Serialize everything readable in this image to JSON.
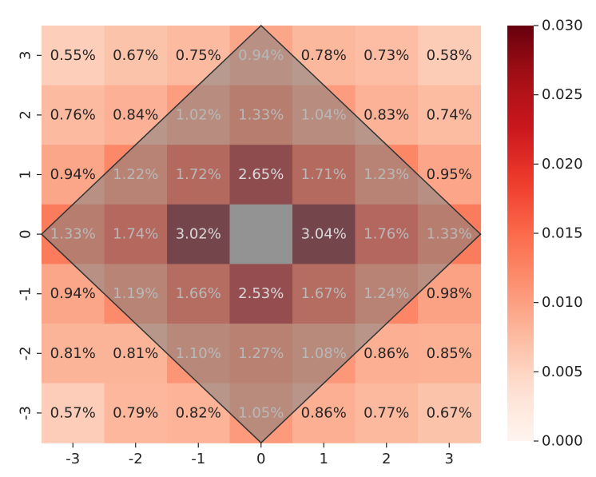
{
  "chart_data": {
    "type": "heatmap",
    "x_labels": [
      "-3",
      "-2",
      "-1",
      "0",
      "1",
      "2",
      "3"
    ],
    "y_labels": [
      "3",
      "2",
      "1",
      "0",
      "-1",
      "-2",
      "-3"
    ],
    "values": [
      [
        0.0055,
        0.0067,
        0.0075,
        0.0094,
        0.0078,
        0.0073,
        0.0058
      ],
      [
        0.0076,
        0.0084,
        0.0102,
        0.0133,
        0.0104,
        0.0083,
        0.0074
      ],
      [
        0.0094,
        0.0122,
        0.0172,
        0.0265,
        0.0171,
        0.0123,
        0.0095
      ],
      [
        0.0133,
        0.0174,
        0.0302,
        null,
        0.0304,
        0.0176,
        0.0133
      ],
      [
        0.0094,
        0.0119,
        0.0166,
        0.0253,
        0.0167,
        0.0124,
        0.0098
      ],
      [
        0.0081,
        0.0081,
        0.011,
        0.0127,
        0.0108,
        0.0086,
        0.0085
      ],
      [
        0.0057,
        0.0079,
        0.0082,
        0.0105,
        0.0086,
        0.0077,
        0.0067
      ]
    ],
    "cell_labels": [
      [
        "0.55%",
        "0.67%",
        "0.75%",
        "0.94%",
        "0.78%",
        "0.73%",
        "0.58%"
      ],
      [
        "0.76%",
        "0.84%",
        "1.02%",
        "1.33%",
        "1.04%",
        "0.83%",
        "0.74%"
      ],
      [
        "0.94%",
        "1.22%",
        "1.72%",
        "2.65%",
        "1.71%",
        "1.23%",
        "0.95%"
      ],
      [
        "1.33%",
        "1.74%",
        "3.02%",
        "",
        "3.04%",
        "1.76%",
        "1.33%"
      ],
      [
        "0.94%",
        "1.19%",
        "1.66%",
        "2.53%",
        "1.67%",
        "1.24%",
        "0.98%"
      ],
      [
        "0.81%",
        "0.81%",
        "1.10%",
        "1.27%",
        "1.08%",
        "0.86%",
        "0.85%"
      ],
      [
        "0.57%",
        "0.79%",
        "0.82%",
        "1.05%",
        "0.86%",
        "0.77%",
        "0.67%"
      ]
    ],
    "center_fill": "#aaaaaa",
    "colormap": "Reds",
    "colorbar": {
      "min": 0.0,
      "max": 0.03,
      "ticks": [
        0.0,
        0.005,
        0.01,
        0.015,
        0.02,
        0.025,
        0.03
      ],
      "tick_labels": [
        "0.000",
        "0.005",
        "0.010",
        "0.015",
        "0.020",
        "0.025",
        "0.030"
      ]
    },
    "overlay": {
      "shape": "diamond",
      "vertices": [
        [
          0,
          3.5
        ],
        [
          3.5,
          0
        ],
        [
          0,
          -3.5
        ],
        [
          -3.5,
          0
        ]
      ],
      "fill": "#808080",
      "fill_opacity": 0.55,
      "stroke": "#333333"
    },
    "title": "",
    "xlabel": "",
    "ylabel": "",
    "grid": false,
    "legend": "colorbar-right"
  }
}
